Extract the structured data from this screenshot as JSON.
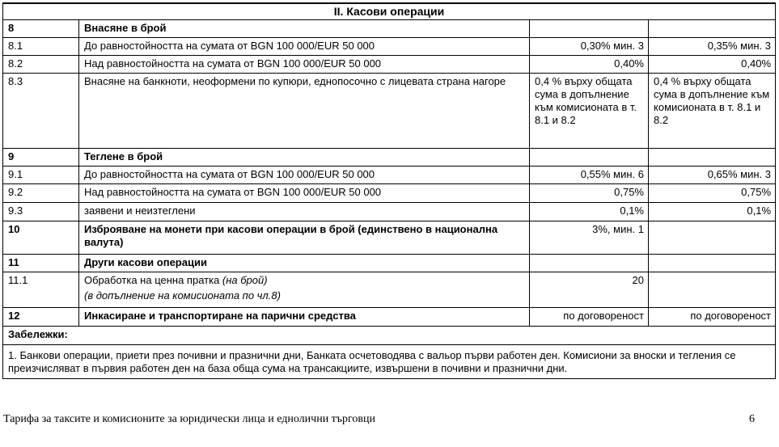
{
  "section_title": "II. Касови операции",
  "rows": [
    {
      "no": "8",
      "desc": "Внасяне в брой",
      "bold": true,
      "c1": "",
      "c2": "",
      "h": 22
    },
    {
      "no": "8.1",
      "desc": "До равностойността на сумата от BGN 100 000/EUR 50 000",
      "c1": "0,30% мин. 3",
      "c2": "0,35% мин. 3",
      "h": 22
    },
    {
      "no": "8.2",
      "desc": "Над равностойността на сумата от BGN 100 000/EUR 50 000",
      "c1": "0,40%",
      "c2": "0,40%",
      "h": 22
    },
    {
      "no": "8.3",
      "desc": "Внасяне на банкноти, неоформени по купюри, еднопосочно с лицевата страна нагоре",
      "c1": "0,4 % върху общата сума в допълнение към комисионата в т. 8.1 и 8.2",
      "c2": "0,4 % върху общата сума в допълнение към комисионата в т. 8.1 и 8.2",
      "wrap": true,
      "h": 93
    },
    {
      "no": "9",
      "desc": "Теглене в брой",
      "bold": true,
      "c1": "",
      "c2": "",
      "h": 22
    },
    {
      "no": "9.1",
      "desc": "До равностойността на сумата от BGN 100 000/EUR 50 000",
      "c1": "0,55% мин. 6",
      "c2": "0,65% мин. 3",
      "h": 22
    },
    {
      "no": "9.2",
      "desc": "Над равностойността на сумата от BGN 100 000/EUR 50 000",
      "c1": "0,75%",
      "c2": "0,75%",
      "h": 23
    },
    {
      "no": "9.3",
      "desc": "заявени и неизтеглени",
      "c1": "0,1%",
      "c2": "0,1%",
      "h": 23
    },
    {
      "no": "10",
      "desc": "Изброяване на монети при касови операции в брой (единствено в национална валута)",
      "bold": true,
      "c1": "3%, мин. 1",
      "c2": "",
      "h": 41
    },
    {
      "no": "11",
      "desc": "Други касови операции",
      "bold": true,
      "c1": "",
      "c2": "",
      "h": 22
    },
    {
      "no": "11.1",
      "desc": "Обработка на ценна пратка ",
      "desc_italic": "(на брой)",
      "desc_line2": "(в допълнение на комисионата по чл.8)",
      "c1": "20",
      "c2": "",
      "h": 42
    },
    {
      "no": "12",
      "desc": "Инкасиране и транспортиране на парични средства",
      "bold": true,
      "c1": "по договореност",
      "c2": "по договореност",
      "h": 23
    }
  ],
  "notes_label": "Забележки:",
  "notes_text": "1. Банкови операции, приети през почивни и празнични дни, Банката осчетоводява с вальор първи работен ден. Комисиони за вноски и тегления се преизчисляват в първия работен ден на база обща сума на трансакциите, извършени в почивни и празнични дни.",
  "footer": {
    "text": "Тарифа за таксите и комисионите за юридически лица и еднолични търговци",
    "page": "6"
  }
}
